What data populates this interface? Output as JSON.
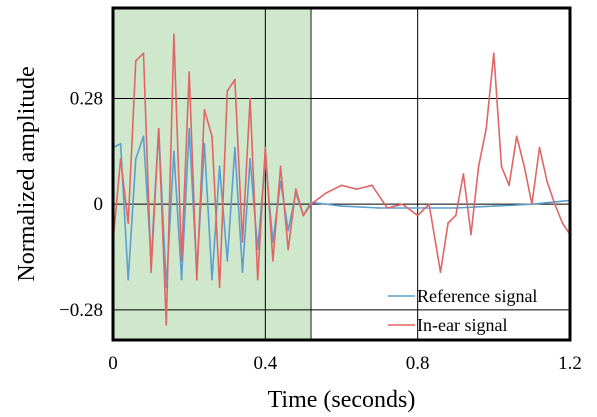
{
  "chart_data": {
    "type": "line",
    "title": "",
    "xlabel": "Time (seconds)",
    "ylabel": "Normalized amplitude",
    "xlim": [
      0,
      1.2
    ],
    "ylim": [
      -0.36,
      0.52
    ],
    "xticks": [
      0,
      0.4,
      0.8,
      1.2
    ],
    "xtick_labels": [
      "0",
      "0.4",
      "0.8",
      "1.2"
    ],
    "yticks": [
      -0.28,
      0,
      0.28
    ],
    "ytick_labels": [
      "−0.28",
      "0",
      "0.28"
    ],
    "grid": true,
    "legend_position": "bottom-right",
    "highlight_region": {
      "x": [
        0,
        0.52
      ],
      "color": "#cfe8cc"
    },
    "series": [
      {
        "name": "Reference signal",
        "color": "#5b9fd0",
        "x": [
          0,
          0.02,
          0.04,
          0.06,
          0.08,
          0.1,
          0.12,
          0.14,
          0.16,
          0.18,
          0.2,
          0.22,
          0.24,
          0.26,
          0.28,
          0.3,
          0.32,
          0.34,
          0.36,
          0.38,
          0.4,
          0.42,
          0.44,
          0.46,
          0.48,
          0.5,
          0.52,
          0.6,
          0.7,
          0.8,
          0.9,
          1.0,
          1.1,
          1.2
        ],
        "values": [
          0.15,
          0.16,
          -0.2,
          0.12,
          0.18,
          -0.15,
          0.2,
          -0.22,
          0.14,
          -0.2,
          0.2,
          -0.18,
          0.16,
          -0.2,
          0.1,
          -0.15,
          0.15,
          -0.18,
          0.12,
          -0.12,
          0.12,
          -0.1,
          0.06,
          -0.07,
          0.03,
          -0.03,
          0.005,
          -0.005,
          -0.01,
          -0.01,
          -0.01,
          -0.005,
          0.0,
          0.01
        ]
      },
      {
        "name": "In-ear signal",
        "color": "#e06666",
        "x": [
          0,
          0.02,
          0.04,
          0.06,
          0.08,
          0.1,
          0.12,
          0.14,
          0.16,
          0.18,
          0.2,
          0.22,
          0.24,
          0.26,
          0.28,
          0.3,
          0.32,
          0.34,
          0.36,
          0.38,
          0.4,
          0.42,
          0.44,
          0.46,
          0.48,
          0.5,
          0.52,
          0.56,
          0.6,
          0.64,
          0.68,
          0.72,
          0.76,
          0.8,
          0.83,
          0.86,
          0.88,
          0.9,
          0.92,
          0.94,
          0.96,
          0.98,
          1.0,
          1.02,
          1.04,
          1.06,
          1.08,
          1.1,
          1.12,
          1.14,
          1.16,
          1.18,
          1.2
        ],
        "values": [
          -0.1,
          0.12,
          -0.05,
          0.38,
          0.4,
          -0.18,
          0.2,
          -0.32,
          0.45,
          -0.15,
          0.35,
          -0.2,
          0.25,
          0.18,
          -0.22,
          0.3,
          0.33,
          -0.1,
          0.28,
          -0.2,
          0.15,
          -0.15,
          0.1,
          -0.12,
          0.04,
          -0.03,
          0.0,
          0.03,
          0.05,
          0.04,
          0.05,
          -0.01,
          0.0,
          -0.03,
          0.0,
          -0.18,
          -0.05,
          -0.03,
          0.08,
          -0.08,
          0.1,
          0.2,
          0.4,
          0.1,
          0.05,
          0.18,
          0.1,
          0.0,
          0.15,
          0.06,
          0.0,
          -0.05,
          -0.08
        ]
      }
    ]
  }
}
